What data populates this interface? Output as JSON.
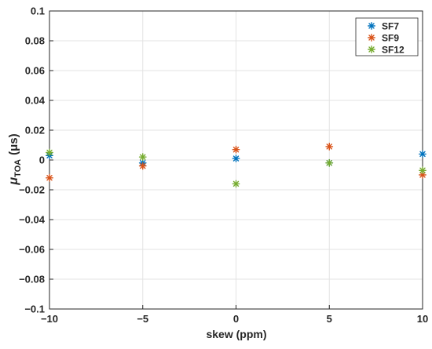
{
  "chart_data": {
    "type": "scatter",
    "title": "",
    "xlabel": "skew (ppm)",
    "ylabel": {
      "symbol": "μ",
      "subscript": "TOA",
      "unit": "(μs)"
    },
    "xlim": [
      -10,
      10
    ],
    "ylim": [
      -0.1,
      0.1
    ],
    "x_ticks": [
      -10,
      -5,
      0,
      5,
      10
    ],
    "x_tick_labels": [
      "−10",
      "−5",
      "0",
      "5",
      "10"
    ],
    "y_ticks": [
      -0.1,
      -0.08,
      -0.06,
      -0.04,
      -0.02,
      0,
      0.02,
      0.04,
      0.06,
      0.08,
      0.1
    ],
    "y_tick_labels": [
      "−0.1",
      "−0.08",
      "−0.06",
      "−0.04",
      "−0.02",
      "0",
      "0.02",
      "0.04",
      "0.06",
      "0.08",
      "0.1"
    ],
    "grid": true,
    "marker": "*",
    "legend_position": "top-right",
    "series": [
      {
        "name": "SF7",
        "color": "#0072BD",
        "points": [
          {
            "x": -10,
            "y": 0.003
          },
          {
            "x": -5,
            "y": -0.002
          },
          {
            "x": 0,
            "y": 0.001
          },
          {
            "x": 5,
            "y": -0.002
          },
          {
            "x": 10,
            "y": 0.004
          }
        ]
      },
      {
        "name": "SF9",
        "color": "#D95319",
        "points": [
          {
            "x": -10,
            "y": -0.012
          },
          {
            "x": -5,
            "y": -0.004
          },
          {
            "x": 0,
            "y": 0.007
          },
          {
            "x": 5,
            "y": 0.009
          },
          {
            "x": 10,
            "y": -0.01
          }
        ]
      },
      {
        "name": "SF12",
        "color": "#77AC30",
        "points": [
          {
            "x": -10,
            "y": 0.005
          },
          {
            "x": -5,
            "y": 0.002
          },
          {
            "x": 0,
            "y": -0.016
          },
          {
            "x": 5,
            "y": -0.002
          },
          {
            "x": 10,
            "y": -0.007
          }
        ]
      }
    ]
  }
}
